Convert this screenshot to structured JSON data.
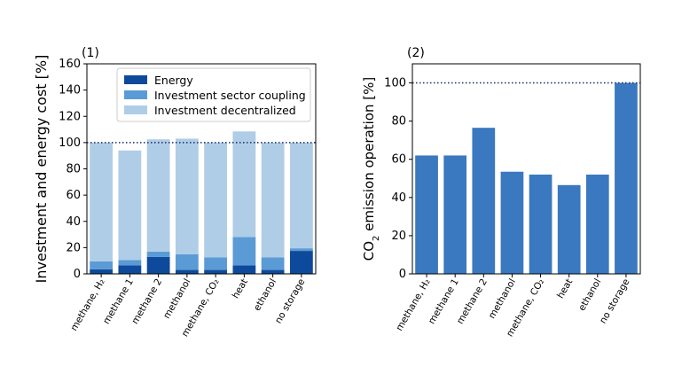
{
  "chart_data": [
    {
      "panel_label": "(1)",
      "type": "bar",
      "stacked": true,
      "categories": [
        "methane, H₂",
        "methane 1",
        "methane 2",
        "methanol",
        "methane, CO₂",
        "heat",
        "ethanol",
        "no storage"
      ],
      "series": [
        {
          "name": "Energy",
          "color": "#0d4a9b",
          "values": [
            3.5,
            6.5,
            13,
            3,
            3,
            6.5,
            3,
            17.5
          ]
        },
        {
          "name": "Investment sector coupling",
          "color": "#5b9bd5",
          "values": [
            6,
            4,
            4,
            12,
            9.5,
            21.5,
            9.5,
            2
          ]
        },
        {
          "name": "Investment decentralized",
          "color": "#afcde6",
          "values": [
            90.5,
            83.5,
            85.5,
            88,
            87.5,
            80.5,
            87.5,
            80.5
          ]
        }
      ],
      "ylabel": "Investment and energy cost [%]",
      "ylim": [
        0,
        160
      ],
      "yticks": [
        0,
        20,
        40,
        60,
        80,
        100,
        120,
        140,
        160
      ],
      "reference_line": 100,
      "legend": "top-center",
      "grid": false
    },
    {
      "panel_label": "(2)",
      "type": "bar",
      "categories": [
        "methane, H₂",
        "methane 1",
        "methane 2",
        "methanol",
        "methane, CO₂",
        "heat",
        "ethanol",
        "no storage"
      ],
      "color": "#3a78bf",
      "values": [
        62,
        62,
        76.5,
        53.5,
        52,
        46.5,
        52,
        100
      ],
      "ylabel_main": "CO",
      "ylabel_sub": "2",
      "ylabel_rest": " emission operation [%]",
      "ylim": [
        0,
        110
      ],
      "yticks": [
        0,
        20,
        40,
        60,
        80,
        100
      ],
      "reference_line": 100,
      "grid": false
    }
  ]
}
